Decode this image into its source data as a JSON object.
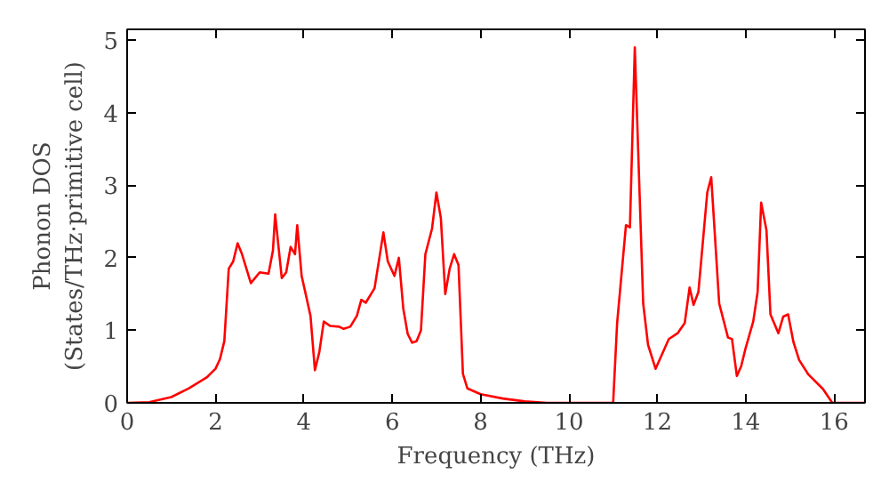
{
  "chart_data": {
    "type": "line",
    "xlabel": "Frequency (THz)",
    "ylabel": "Phonon DOS\n(States/THz·primitive cell)",
    "xlim": [
      0,
      16.7
    ],
    "ylim": [
      0,
      5.15
    ],
    "xticks": [
      0,
      2,
      4,
      6,
      8,
      10,
      12,
      14,
      16
    ],
    "yticks": [
      0,
      1,
      2,
      3,
      4,
      5
    ],
    "grid": false,
    "series": [
      {
        "color": "#ff0000",
        "x": [
          0,
          0.5,
          1,
          1.4,
          1.8,
          2.0,
          2.1,
          2.2,
          2.3,
          2.4,
          2.5,
          2.6,
          2.8,
          3.0,
          3.2,
          3.3,
          3.35,
          3.5,
          3.6,
          3.7,
          3.8,
          3.85,
          3.95,
          4.15,
          4.25,
          4.35,
          4.45,
          4.6,
          4.8,
          4.9,
          5.05,
          5.2,
          5.3,
          5.4,
          5.6,
          5.8,
          5.9,
          6.05,
          6.15,
          6.25,
          6.35,
          6.45,
          6.55,
          6.65,
          6.75,
          6.9,
          7.0,
          7.1,
          7.2,
          7.3,
          7.4,
          7.5,
          7.6,
          7.7,
          8.0,
          8.5,
          9.0,
          9.5,
          11.0,
          11.09,
          11.29,
          11.38,
          11.49,
          11.68,
          11.79,
          11.96,
          12.26,
          12.46,
          12.62,
          12.73,
          12.82,
          12.93,
          13.13,
          13.22,
          13.4,
          13.6,
          13.69,
          13.8,
          13.9,
          14.0,
          14.17,
          14.27,
          14.35,
          14.47,
          14.56,
          14.74,
          14.85,
          14.96,
          15.08,
          15.21,
          15.42,
          15.75,
          15.96,
          16.7
        ],
        "values": [
          0,
          0.01,
          0.08,
          0.2,
          0.35,
          0.47,
          0.6,
          0.85,
          1.85,
          1.95,
          2.2,
          2.05,
          1.65,
          1.8,
          1.78,
          2.1,
          2.6,
          1.72,
          1.8,
          2.15,
          2.05,
          2.45,
          1.75,
          1.2,
          0.45,
          0.7,
          1.12,
          1.06,
          1.05,
          1.02,
          1.05,
          1.2,
          1.42,
          1.38,
          1.58,
          2.35,
          1.95,
          1.75,
          2.0,
          1.3,
          0.95,
          0.83,
          0.85,
          1.0,
          2.05,
          2.4,
          2.9,
          2.55,
          1.5,
          1.85,
          2.05,
          1.9,
          0.4,
          0.2,
          0.12,
          0.06,
          0.02,
          0,
          0,
          1.1,
          2.45,
          2.42,
          4.9,
          1.37,
          0.8,
          0.47,
          0.88,
          0.96,
          1.1,
          1.59,
          1.35,
          1.53,
          2.9,
          3.11,
          1.37,
          0.9,
          0.88,
          0.37,
          0.51,
          0.76,
          1.12,
          1.53,
          2.76,
          2.38,
          1.22,
          0.96,
          1.19,
          1.22,
          0.84,
          0.59,
          0.39,
          0.19,
          0,
          0
        ]
      }
    ]
  }
}
